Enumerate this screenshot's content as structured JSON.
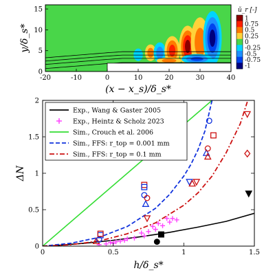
{
  "chart_data": [
    {
      "type": "heatmap",
      "colorbar_title": "ŭ_r [-]",
      "colorbar_ticks": [
        "1",
        "0.75",
        "0.5",
        "0.25",
        "0",
        "-0.25",
        "-0.5",
        "-0.75",
        "-1"
      ],
      "colorbar_colors": [
        "#8b0000",
        "#ff2000",
        "#ff7a00",
        "#ffd23a",
        "#49d649",
        "#00d4ff",
        "#1e90ff",
        "#0044ee",
        "#00007e"
      ],
      "xlabel": "(x − x_s)/δ_s*",
      "ylabel": "y/δ_s*",
      "xlim": [
        -20,
        40
      ],
      "ylim": [
        0,
        16
      ],
      "x_ticks": [
        "-20",
        "-10",
        "0",
        "10",
        "20",
        "30",
        "40"
      ],
      "y_ticks": [
        "0",
        "5",
        "10",
        "15"
      ],
      "step": {
        "x": 0,
        "height": 2
      },
      "structures": [
        {
          "x": 10,
          "y": 4,
          "rx": 1.5,
          "ry": 1.5,
          "sign": -1,
          "amp": 0.3
        },
        {
          "x": 14,
          "y": 4.5,
          "rx": 1.8,
          "ry": 2,
          "sign": 1,
          "amp": 0.4
        },
        {
          "x": 17,
          "y": 4.5,
          "rx": 2,
          "ry": 2.5,
          "sign": -1,
          "amp": 0.5
        },
        {
          "x": 21,
          "y": 5,
          "rx": 2.5,
          "ry": 3.5,
          "sign": 1,
          "amp": 0.75
        },
        {
          "x": 26,
          "y": 6,
          "rx": 2.8,
          "ry": 5,
          "sign": 1,
          "amp": 1.0
        },
        {
          "x": 30,
          "y": 7,
          "rx": 3,
          "ry": 6,
          "sign": 1,
          "amp": 0.6
        },
        {
          "x": 34,
          "y": 8,
          "rx": 3,
          "ry": 6.5,
          "sign": -1,
          "amp": 1.0
        },
        {
          "x": 29,
          "y": 3,
          "rx": 5,
          "ry": 1.2,
          "sign": -1,
          "amp": 0.7
        },
        {
          "x": 20,
          "y": 2.6,
          "rx": 4,
          "ry": 0.8,
          "sign": 1,
          "amp": 0.5
        }
      ]
    },
    {
      "type": "scatter",
      "xlabel": "h/δ_s*",
      "ylabel": "ΔN",
      "xlim": [
        0,
        1.5
      ],
      "ylim": [
        0,
        2
      ],
      "x_ticks": [
        0,
        0.5,
        1,
        1.5
      ],
      "x_tick_labels": [
        "0",
        "0.5",
        "1",
        "1.5"
      ],
      "y_ticks": [
        0,
        0.5,
        1,
        1.5,
        2
      ],
      "y_tick_labels": [
        "0",
        "0.5",
        "1",
        "1.5",
        "2"
      ],
      "legend_position": "top-left",
      "series": [
        {
          "name": "Exp., Wang & Gaster 2005",
          "kind": "line",
          "color": "#000000",
          "x": [
            0.1,
            0.3,
            0.5,
            0.7,
            0.9,
            1.1,
            1.3,
            1.5
          ],
          "y": [
            0.01,
            0.04,
            0.08,
            0.13,
            0.19,
            0.26,
            0.34,
            0.45
          ]
        },
        {
          "name": "Exp., Heintz & Scholz 2023",
          "kind": "plus",
          "color": "#ff44ff",
          "x": [
            0.4,
            0.45,
            0.48,
            0.5,
            0.52,
            0.55,
            0.58,
            0.6,
            0.65,
            0.7,
            0.72,
            0.75,
            0.78,
            0.8,
            0.82,
            0.85,
            0.88,
            0.9,
            0.92,
            0.95
          ],
          "y": [
            0.02,
            0.03,
            0.05,
            0.04,
            0.06,
            0.07,
            0.08,
            0.1,
            0.11,
            0.18,
            0.14,
            0.2,
            0.27,
            0.23,
            0.31,
            0.28,
            0.38,
            0.33,
            0.38,
            0.36
          ]
        },
        {
          "name": "Sim., Crouch et al. 2006",
          "kind": "line",
          "color": "#33dd33",
          "x": [
            0,
            1.2
          ],
          "y": [
            0,
            2
          ]
        },
        {
          "name": "Sim., FFS: r_top = 0.001 mm",
          "kind": "dashed",
          "color": "#1133dd",
          "x": [
            0,
            0.2,
            0.4,
            0.6,
            0.8,
            0.9,
            1.0,
            1.05,
            1.1,
            1.15,
            1.2
          ],
          "y": [
            0,
            0.04,
            0.12,
            0.27,
            0.52,
            0.71,
            0.96,
            1.12,
            1.32,
            1.58,
            2.0
          ]
        },
        {
          "name": "Sim., FFS: r_top = 0.1 mm",
          "kind": "dashdot",
          "color": "#cc1111",
          "x": [
            0,
            0.2,
            0.4,
            0.6,
            0.8,
            1.0,
            1.1,
            1.2,
            1.3,
            1.4,
            1.45
          ],
          "y": [
            0,
            0.02,
            0.07,
            0.17,
            0.32,
            0.56,
            0.73,
            0.96,
            1.28,
            1.68,
            1.98
          ]
        }
      ],
      "markers": [
        {
          "x": 0.38,
          "y": 0.07,
          "shape": "triangle",
          "color": "#cc1111"
        },
        {
          "x": 0.4,
          "y": 0.09,
          "shape": "circle",
          "color": "#1133dd"
        },
        {
          "x": 0.41,
          "y": 0.15,
          "shape": "square",
          "color": "#1133dd"
        },
        {
          "x": 0.41,
          "y": 0.17,
          "shape": "square",
          "color": "#cc1111"
        },
        {
          "x": 0.72,
          "y": 0.84,
          "shape": "square",
          "color": "#cc1111"
        },
        {
          "x": 0.72,
          "y": 0.81,
          "shape": "square",
          "color": "#1133dd"
        },
        {
          "x": 0.72,
          "y": 0.7,
          "shape": "circle",
          "color": "#1133dd"
        },
        {
          "x": 0.73,
          "y": 0.58,
          "shape": "triangle",
          "color": "#1133dd"
        },
        {
          "x": 0.74,
          "y": 0.66,
          "shape": "circle",
          "color": "#cc1111"
        },
        {
          "x": 0.74,
          "y": 0.38,
          "shape": "triangle-down",
          "color": "#cc1111"
        },
        {
          "x": 1.04,
          "y": 0.88,
          "shape": "triangle-down",
          "color": "#1133dd"
        },
        {
          "x": 1.06,
          "y": 0.86,
          "shape": "triangle",
          "color": "#cc1111"
        },
        {
          "x": 1.09,
          "y": 0.88,
          "shape": "triangle-down",
          "color": "#cc1111"
        },
        {
          "x": 1.16,
          "y": 1.28,
          "shape": "triangle",
          "color": "#1133dd"
        },
        {
          "x": 1.17,
          "y": 1.34,
          "shape": "circle",
          "color": "#cc1111"
        },
        {
          "x": 1.17,
          "y": 1.23,
          "shape": "triangle",
          "color": "#cc1111"
        },
        {
          "x": 1.18,
          "y": 1.72,
          "shape": "circle",
          "color": "#1133dd"
        },
        {
          "x": 1.21,
          "y": 1.52,
          "shape": "square",
          "color": "#cc1111"
        },
        {
          "x": 1.45,
          "y": 1.81,
          "shape": "triangle-down",
          "color": "#cc1111"
        },
        {
          "x": 1.45,
          "y": 1.27,
          "shape": "diamond",
          "color": "#cc1111"
        },
        {
          "x": 1.46,
          "y": 0.72,
          "shape": "triangle-down-filled",
          "color": "#000000"
        },
        {
          "x": 0.81,
          "y": 0.06,
          "shape": "circle-filled",
          "color": "#000000"
        },
        {
          "x": 0.84,
          "y": 0.16,
          "shape": "square-filled",
          "color": "#000000"
        }
      ]
    }
  ]
}
